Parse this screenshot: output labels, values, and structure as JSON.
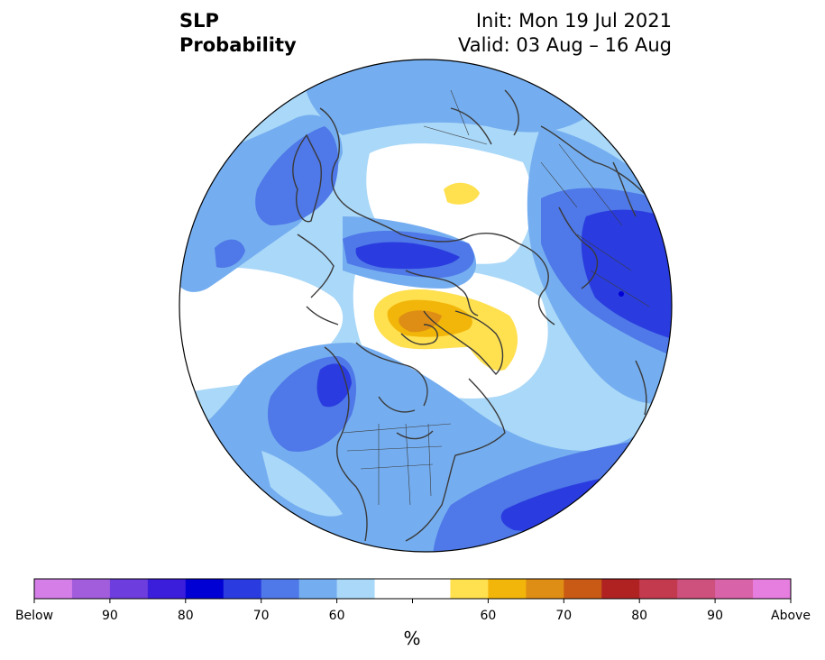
{
  "title": {
    "left_line1": "SLP",
    "left_line2": "Probability",
    "right_line1": "Init: Mon 19 Jul 2021",
    "right_line2": "Valid: 03 Aug – 16 Aug"
  },
  "colorbar": {
    "unit": "%",
    "labels": [
      "Below",
      "90",
      "80",
      "70",
      "60",
      "60",
      "70",
      "80",
      "90",
      "Above"
    ],
    "colors": [
      "#d57ee8",
      "#a25ddd",
      "#6e3ddd",
      "#3b1ddc",
      "#0000d4",
      "#2a3cdf",
      "#4f78e8",
      "#75aef0",
      "#aad8f8",
      "#ffffff",
      "#ffe04f",
      "#f2b60a",
      "#de8e14",
      "#c95a16",
      "#b02222",
      "#c33a4e",
      "#cd507d",
      "#d963a9",
      "#e67ee0"
    ]
  },
  "palette": {
    "land_outline": "#3a3a3a",
    "border": "#000000"
  }
}
